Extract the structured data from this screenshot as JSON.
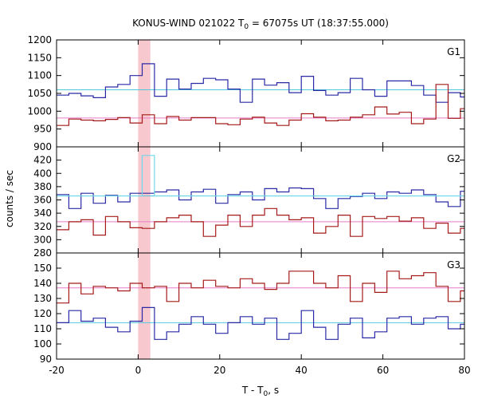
{
  "chart_data": {
    "type": "line",
    "title_main": "KONUS-WIND 021022 T",
    "title_sub": "0",
    "title_rest": " = 67075s UT (18:37:55.000)",
    "xlabel_main": "T - T",
    "xlabel_sub": "0",
    "xlabel_rest": ", s",
    "ylabel": "counts / sec",
    "xlim": [
      -20,
      80
    ],
    "xticks": [
      -20,
      0,
      20,
      40,
      60,
      80
    ],
    "highlight_band": [
      0,
      3
    ],
    "bin_width": 3,
    "bin_start": -20,
    "colors": {
      "blue": "#2a2aa6",
      "red": "#a51a1a",
      "cyan": "#50c8dc",
      "pink": "#e87cc8",
      "highlight": "#f7c9cf",
      "burst": "#6fd8ea"
    },
    "panels": [
      {
        "label": "G1",
        "ylim": [
          900,
          1200
        ],
        "yticks": [
          900,
          950,
          1000,
          1050,
          1100,
          1150,
          1200
        ],
        "series": [
          {
            "color": "blue",
            "values": [
              1045,
              1050,
              1043,
              1038,
              1068,
              1075,
              1100,
              1133,
              1042,
              1090,
              1062,
              1078,
              1092,
              1088,
              1062,
              1025,
              1090,
              1073,
              1080,
              1052,
              1098,
              1058,
              1045,
              1052,
              1092,
              1060,
              1042,
              1085,
              1085,
              1072,
              1045,
              1025,
              1052,
              1040
            ]
          },
          {
            "color": "red",
            "values": [
              960,
              978,
              975,
              973,
              977,
              982,
              967,
              990,
              965,
              985,
              975,
              982,
              982,
              965,
              962,
              978,
              983,
              967,
              960,
              975,
              993,
              983,
              973,
              975,
              983,
              990,
              1012,
              992,
              997,
              965,
              978,
              1075,
              980,
              1007
            ]
          }
        ],
        "fit_lines": [
          {
            "color": "cyan",
            "value": 1060
          },
          {
            "color": "pink",
            "value": 981
          }
        ]
      },
      {
        "label": "G2",
        "ylim": [
          280,
          440
        ],
        "yticks": [
          280,
          300,
          320,
          340,
          360,
          380,
          400,
          420
        ],
        "series": [
          {
            "color": "blue",
            "values": [
              368,
              347,
              370,
              355,
              367,
              357,
              370,
              370,
              372,
              375,
              360,
              372,
              376,
              355,
              368,
              372,
              360,
              377,
              372,
              378,
              377,
              362,
              347,
              362,
              365,
              370,
              362,
              372,
              370,
              375,
              368,
              357,
              350,
              373
            ]
          },
          {
            "color": "red",
            "values": [
              315,
              327,
              330,
              307,
              335,
              327,
              318,
              317,
              327,
              333,
              337,
              327,
              305,
              322,
              337,
              320,
              337,
              347,
              337,
              330,
              333,
              310,
              320,
              337,
              305,
              335,
              332,
              335,
              328,
              333,
              317,
              325,
              310,
              317
            ]
          },
          {
            "color": "burst",
            "values": [
              366,
              366,
              366,
              366,
              366,
              366,
              366,
              427,
              366,
              366,
              366,
              366,
              366,
              366,
              366,
              366,
              366,
              366,
              366,
              366,
              366,
              366,
              366,
              366,
              366,
              366,
              366,
              366,
              366,
              366,
              366,
              366,
              366,
              366
            ]
          }
        ],
        "fit_lines": [
          {
            "color": "cyan",
            "value": 366
          },
          {
            "color": "pink",
            "value": 327
          }
        ]
      },
      {
        "label": "G3",
        "ylim": [
          90,
          160
        ],
        "yticks": [
          90,
          100,
          110,
          120,
          130,
          140,
          150
        ],
        "series": [
          {
            "color": "red",
            "values": [
              127,
              140,
              133,
              138,
              137,
              135,
              140,
              137,
              138,
              128,
              140,
              137,
              142,
              138,
              137,
              143,
              140,
              136,
              140,
              148,
              148,
              140,
              137,
              145,
              128,
              140,
              134,
              148,
              143,
              145,
              147,
              138,
              128,
              135
            ]
          },
          {
            "color": "blue",
            "values": [
              114,
              122,
              115,
              117,
              111,
              108,
              115,
              124,
              103,
              108,
              113,
              118,
              113,
              107,
              114,
              118,
              113,
              117,
              103,
              107,
              122,
              111,
              103,
              113,
              117,
              104,
              108,
              117,
              118,
              113,
              117,
              118,
              110,
              113
            ]
          }
        ],
        "fit_lines": [
          {
            "color": "pink",
            "value": 137
          },
          {
            "color": "cyan",
            "value": 114
          }
        ]
      }
    ]
  }
}
